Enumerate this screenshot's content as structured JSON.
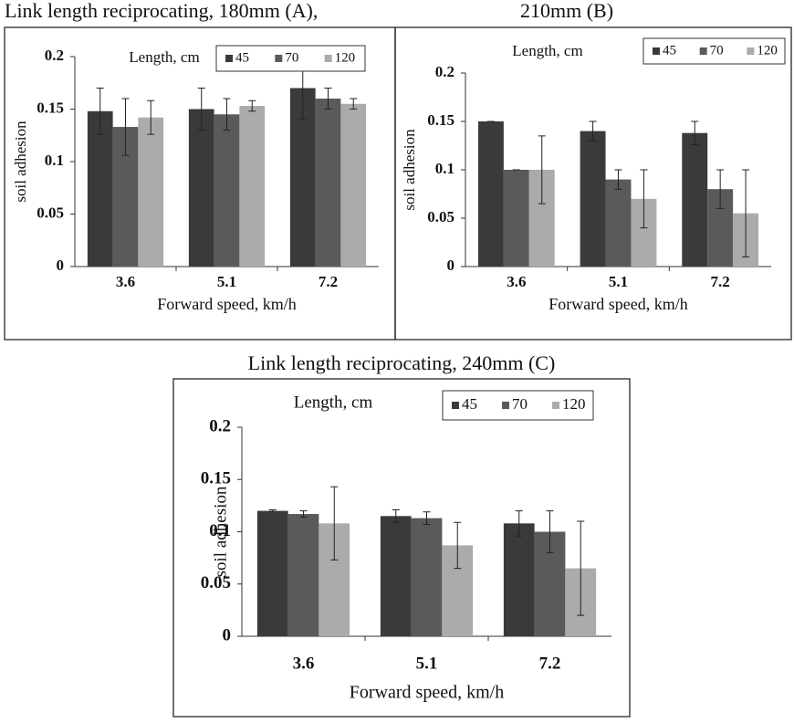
{
  "chart_data": [
    {
      "type": "bar",
      "title": "Link length reciprocating, 180mm (A),",
      "legend_title": "Length, cm",
      "xlabel": "Forward speed, km/h",
      "ylabel": "soil adhesion",
      "categories": [
        "3.6",
        "5.1",
        "7.2"
      ],
      "series": [
        {
          "name": "45",
          "color": "#3a3a3a",
          "values": [
            0.148,
            0.15,
            0.17
          ],
          "errors": [
            0.022,
            0.02,
            0.03
          ]
        },
        {
          "name": "70",
          "color": "#5a5a5a",
          "values": [
            0.133,
            0.145,
            0.16
          ],
          "errors": [
            0.027,
            0.015,
            0.01
          ]
        },
        {
          "name": "120",
          "color": "#ababab",
          "values": [
            0.142,
            0.153,
            0.155
          ],
          "errors": [
            0.016,
            0.005,
            0.005
          ]
        }
      ],
      "ylim": [
        0,
        0.2
      ],
      "yticks": [
        0,
        0.05,
        0.1,
        0.15,
        0.2
      ]
    },
    {
      "type": "bar",
      "title": "210mm (B)",
      "legend_title": "Length, cm",
      "xlabel": "Forward speed, km/h",
      "ylabel": "soil adhesion",
      "categories": [
        "3.6",
        "5.1",
        "7.2"
      ],
      "series": [
        {
          "name": "45",
          "color": "#3a3a3a",
          "values": [
            0.15,
            0.14,
            0.138
          ],
          "errors": [
            0,
            0.01,
            0.012
          ]
        },
        {
          "name": "70",
          "color": "#5a5a5a",
          "values": [
            0.1,
            0.09,
            0.08
          ],
          "errors": [
            0,
            0.01,
            0.02
          ]
        },
        {
          "name": "120",
          "color": "#ababab",
          "values": [
            0.1,
            0.07,
            0.055
          ],
          "errors": [
            0.035,
            0.03,
            0.045
          ]
        }
      ],
      "ylim": [
        0,
        0.2
      ],
      "yticks": [
        0,
        0.05,
        0.1,
        0.15,
        0.2
      ]
    },
    {
      "type": "bar",
      "title": "Link length reciprocating, 240mm  (C)",
      "legend_title": "Length, cm",
      "xlabel": "Forward speed, km/h",
      "ylabel": "soil adhesion",
      "categories": [
        "3.6",
        "5.1",
        "7.2"
      ],
      "series": [
        {
          "name": "45",
          "color": "#3a3a3a",
          "values": [
            0.12,
            0.115,
            0.108
          ],
          "errors": [
            0.001,
            0.006,
            0.012
          ]
        },
        {
          "name": "70",
          "color": "#5a5a5a",
          "values": [
            0.117,
            0.113,
            0.1
          ],
          "errors": [
            0.003,
            0.006,
            0.02
          ]
        },
        {
          "name": "120",
          "color": "#ababab",
          "values": [
            0.108,
            0.087,
            0.065
          ],
          "errors": [
            0.035,
            0.022,
            0.045
          ]
        }
      ],
      "ylim": [
        0,
        0.2
      ],
      "yticks": [
        0,
        0.05,
        0.1,
        0.15,
        0.2
      ]
    }
  ]
}
